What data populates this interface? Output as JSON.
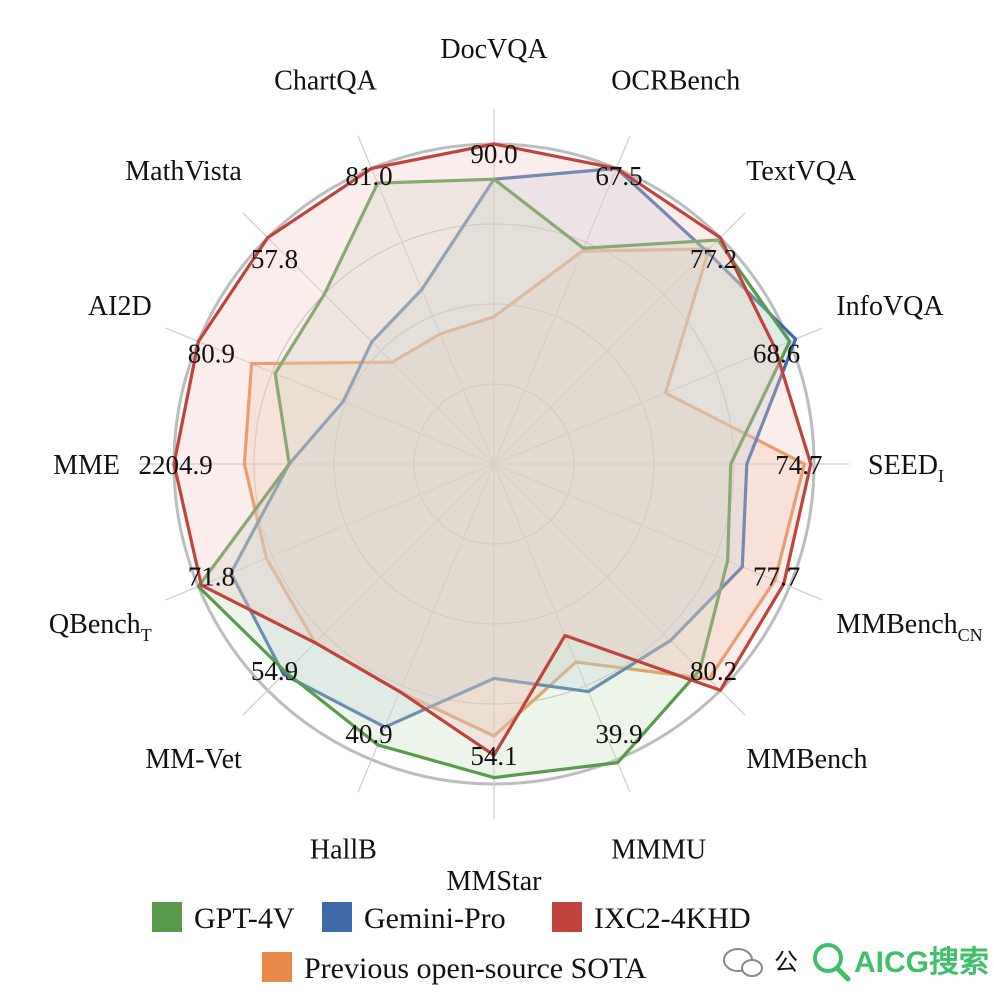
{
  "chart_data": {
    "type": "radar",
    "title": "",
    "axes": [
      {
        "label": "DocVQA",
        "sub": "",
        "max_label": "90.0"
      },
      {
        "label": "OCRBench",
        "sub": "",
        "max_label": "67.5"
      },
      {
        "label": "TextVQA",
        "sub": "",
        "max_label": "77.2"
      },
      {
        "label": "InfoVQA",
        "sub": "",
        "max_label": "68.6"
      },
      {
        "label": "SEED",
        "sub": "I",
        "max_label": "74.7"
      },
      {
        "label": "MMBench",
        "sub": "CN",
        "max_label": "77.7"
      },
      {
        "label": "MMBench",
        "sub": "",
        "max_label": "80.2"
      },
      {
        "label": "MMMU",
        "sub": "",
        "max_label": "39.9"
      },
      {
        "label": "MMStar",
        "sub": "",
        "max_label": "54.1"
      },
      {
        "label": "HallB",
        "sub": "",
        "max_label": "40.9"
      },
      {
        "label": "MM-Vet",
        "sub": "",
        "max_label": "54.9"
      },
      {
        "label": "QBench",
        "sub": "T",
        "max_label": "71.8"
      },
      {
        "label": "MME",
        "sub": "",
        "max_label": "2204.9"
      },
      {
        "label": "AI2D",
        "sub": "",
        "max_label": "80.9"
      },
      {
        "label": "MathVista",
        "sub": "",
        "max_label": "57.8"
      },
      {
        "label": "ChartQA",
        "sub": "",
        "max_label": "81.0"
      }
    ],
    "rlim": [
      0,
      1
    ],
    "grid_levels": [
      0.25,
      0.5,
      0.75,
      1.0
    ],
    "grid": true,
    "series": [
      {
        "name": "Previous open-source SOTA",
        "color": "#e8894a",
        "fill": "#f4c9a6",
        "values": [
          0.46,
          0.72,
          0.95,
          0.58,
          0.97,
          0.95,
          0.95,
          0.67,
          0.85,
          0.77,
          0.79,
          0.77,
          0.78,
          0.82,
          0.45,
          0.44
        ]
      },
      {
        "name": "Gemini-Pro",
        "color": "#3f6aa8",
        "fill": "#c3d2ea",
        "values": [
          0.89,
          1.0,
          0.94,
          1.02,
          0.79,
          0.84,
          0.78,
          0.77,
          0.67,
          0.89,
          0.93,
          0.89,
          0.64,
          0.51,
          0.54,
          0.59
        ]
      },
      {
        "name": "GPT-4V",
        "color": "#5a9a4d",
        "fill": "#c8e0bd",
        "values": [
          0.89,
          0.73,
          0.99,
          1.0,
          0.74,
          0.79,
          0.91,
          1.01,
          0.98,
          0.95,
          0.92,
          1.0,
          0.64,
          0.74,
          0.75,
          0.95
        ]
      },
      {
        "name": "IXC2-4KHD",
        "color": "#c0433d",
        "fill": "#f0c7c4",
        "values": [
          1.0,
          1.0,
          1.0,
          0.95,
          0.99,
          0.98,
          1.0,
          0.58,
          0.91,
          0.77,
          0.79,
          0.99,
          1.0,
          1.0,
          1.0,
          1.0
        ]
      }
    ],
    "legend": {
      "placement": "bottom",
      "rows": [
        [
          "GPT-4V",
          "Gemini-Pro",
          "IXC2-4KHD"
        ],
        [
          "Previous open-source SOTA"
        ]
      ]
    }
  },
  "watermark": {
    "text": "AICG搜索",
    "prefix": "公",
    "color": "#3fbf6a"
  }
}
